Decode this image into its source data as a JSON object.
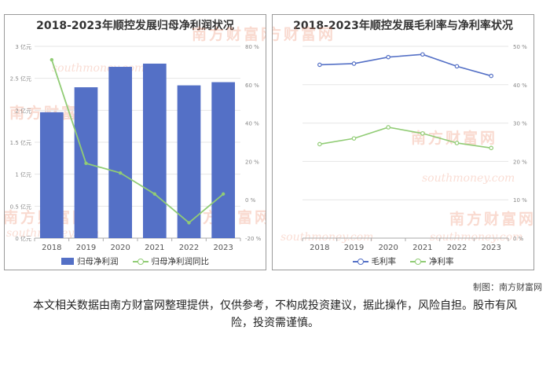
{
  "footer": {
    "credit": "制图：南方财富网",
    "disclaimer": "本文相关数据由南方财富网整理提供，仅供参考，不构成投资建议，据此操作，风险自担。股市有风险，投资需谨慎。"
  },
  "watermark": {
    "cn": "南方财富网",
    "en": "southmoney.com"
  },
  "colors": {
    "bar": "#5470c6",
    "green": "#91cc75",
    "blue": "#5470c6"
  },
  "chart_data": [
    {
      "type": "bar",
      "title": "2018-2023年顺控发展归母净利润状况",
      "categories": [
        "2018",
        "2019",
        "2020",
        "2021",
        "2022",
        "2023"
      ],
      "y_left": {
        "ticks": [
          "0 亿元",
          "0.5 亿元",
          "1 亿元",
          "1.5 亿元",
          "2 亿元",
          "2.5 亿元",
          "3 亿元"
        ],
        "ylim": [
          0,
          3
        ]
      },
      "y_right": {
        "ticks": [
          "-20 %",
          "0 %",
          "20 %",
          "40 %",
          "60 %",
          "80 %"
        ],
        "ylim": [
          -20,
          80
        ]
      },
      "series": [
        {
          "name": "归母净利润",
          "type": "bar",
          "axis": "left",
          "values": [
            1.97,
            2.36,
            2.68,
            2.73,
            2.39,
            2.44
          ]
        },
        {
          "name": "归母净利润同比",
          "type": "line",
          "axis": "right",
          "values": [
            73,
            19,
            14,
            3,
            -12,
            3
          ]
        }
      ],
      "legend_position": "bottom",
      "grid": true
    },
    {
      "type": "line",
      "title": "2018-2023年顺控发展毛利率与净利率状况",
      "categories": [
        "2018",
        "2019",
        "2020",
        "2021",
        "2022",
        "2023"
      ],
      "y_right": {
        "ticks": [
          "0 %",
          "10 %",
          "20 %",
          "30 %",
          "40 %",
          "50 %"
        ],
        "ylim": [
          0,
          50
        ]
      },
      "series": [
        {
          "name": "毛利率",
          "values": [
            45.2,
            45.5,
            47.2,
            47.9,
            44.8,
            42.3
          ]
        },
        {
          "name": "净利率",
          "values": [
            24.5,
            26.0,
            28.9,
            27.3,
            24.8,
            23.5
          ]
        }
      ],
      "legend_position": "bottom",
      "grid": true
    }
  ]
}
